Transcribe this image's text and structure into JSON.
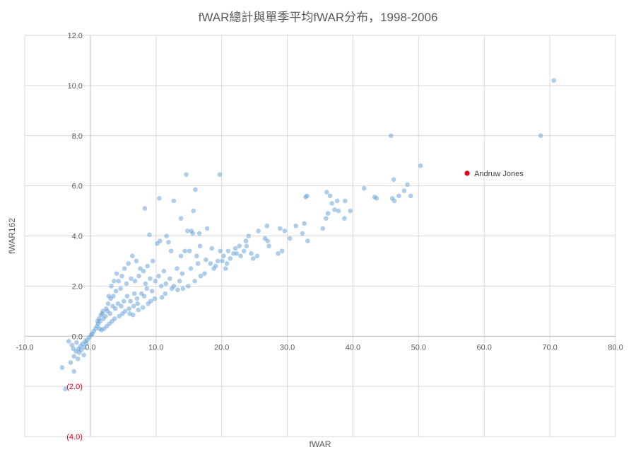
{
  "chart_data": {
    "type": "scatter",
    "title": "fWAR總計與單季平均fWAR分布，1998-2006",
    "xlabel": "fWAR",
    "ylabel": "fWAR162",
    "xlim": [
      -10,
      80
    ],
    "ylim": [
      -4,
      12
    ],
    "x_ticks": [
      "-10.0",
      "0.0",
      "10.0",
      "20.0",
      "30.0",
      "40.0",
      "50.0",
      "60.0",
      "70.0",
      "80.0"
    ],
    "y_ticks": [
      "(4.0)",
      "(2.0)",
      "0.0",
      "2.0",
      "4.0",
      "6.0",
      "8.0",
      "10.0",
      "12.0"
    ],
    "grid": true,
    "series": [
      {
        "color": "#5B9BD5",
        "points": [
          [
            70.6,
            10.2
          ],
          [
            68.6,
            8.0
          ],
          [
            45.8,
            8.0
          ],
          [
            50.3,
            6.8
          ],
          [
            48.3,
            6.05
          ],
          [
            46.2,
            6.25
          ],
          [
            48.8,
            5.6
          ],
          [
            47.8,
            5.8
          ],
          [
            47.0,
            5.6
          ],
          [
            46.0,
            5.5
          ],
          [
            46.3,
            5.4
          ],
          [
            41.7,
            5.9
          ],
          [
            43.3,
            5.55
          ],
          [
            43.6,
            5.5
          ],
          [
            39.6,
            5.0
          ],
          [
            38.8,
            5.4
          ],
          [
            38.7,
            4.7
          ],
          [
            37.6,
            5.4
          ],
          [
            37.8,
            5.0
          ],
          [
            36.5,
            5.6
          ],
          [
            36.0,
            5.75
          ],
          [
            37.2,
            5.05
          ],
          [
            36.8,
            5.3
          ],
          [
            36.2,
            4.9
          ],
          [
            35.9,
            4.7
          ],
          [
            35.4,
            4.3
          ],
          [
            32.8,
            5.55
          ],
          [
            33.0,
            5.6
          ],
          [
            32.6,
            4.5
          ],
          [
            33.1,
            3.8
          ],
          [
            32.3,
            4.1
          ],
          [
            31.3,
            4.4
          ],
          [
            30.4,
            3.9
          ],
          [
            29.6,
            4.2
          ],
          [
            28.9,
            4.3
          ],
          [
            29.2,
            3.4
          ],
          [
            28.6,
            3.3
          ],
          [
            26.9,
            4.4
          ],
          [
            27.2,
            3.6
          ],
          [
            27.0,
            3.8
          ],
          [
            26.6,
            3.9
          ],
          [
            25.6,
            4.2
          ],
          [
            24.1,
            4.0
          ],
          [
            23.7,
            3.8
          ],
          [
            24.5,
            3.3
          ],
          [
            25.4,
            3.2
          ],
          [
            24.8,
            3.1
          ],
          [
            23.4,
            3.4
          ],
          [
            22.7,
            3.6
          ],
          [
            22.1,
            3.5
          ],
          [
            21.8,
            3.3
          ],
          [
            21.3,
            3.1
          ],
          [
            20.8,
            2.9
          ],
          [
            20.6,
            2.7
          ],
          [
            23.8,
            3.6
          ],
          [
            22.9,
            3.2
          ],
          [
            19.7,
            6.45
          ],
          [
            14.6,
            6.45
          ],
          [
            16.0,
            5.85
          ],
          [
            15.7,
            5.0
          ],
          [
            12.7,
            5.4
          ],
          [
            10.5,
            5.5
          ],
          [
            8.3,
            5.1
          ],
          [
            13.8,
            4.7
          ],
          [
            15.4,
            4.2
          ],
          [
            15.6,
            4.1
          ],
          [
            16.6,
            4.1
          ],
          [
            17.8,
            4.3
          ],
          [
            14.8,
            4.2
          ],
          [
            11.6,
            4.0
          ],
          [
            9.0,
            4.05
          ],
          [
            10.2,
            3.7
          ],
          [
            10.6,
            3.8
          ],
          [
            11.9,
            3.75
          ],
          [
            12.3,
            3.4
          ],
          [
            13.8,
            3.2
          ],
          [
            14.4,
            3.4
          ],
          [
            15.1,
            3.4
          ],
          [
            16.2,
            3.2
          ],
          [
            16.7,
            3.6
          ],
          [
            18.5,
            3.5
          ],
          [
            19.8,
            3.4
          ],
          [
            20.3,
            3.2
          ],
          [
            19.4,
            3.0
          ],
          [
            18.8,
            2.7
          ],
          [
            17.4,
            2.5
          ],
          [
            16.8,
            2.4
          ],
          [
            15.9,
            2.2
          ],
          [
            14.9,
            2.0
          ],
          [
            14.1,
            1.9
          ],
          [
            13.3,
            1.85
          ],
          [
            12.4,
            1.9
          ],
          [
            11.4,
            1.7
          ],
          [
            10.9,
            1.55
          ],
          [
            9.8,
            1.5
          ],
          [
            9.2,
            1.4
          ],
          [
            8.8,
            1.3
          ],
          [
            8.0,
            1.15
          ],
          [
            7.3,
            1.05
          ],
          [
            6.5,
            0.85
          ],
          [
            6.0,
            0.9
          ],
          [
            10.4,
            2.4
          ],
          [
            11.2,
            2.6
          ],
          [
            12.1,
            2.3
          ],
          [
            13.2,
            2.7
          ],
          [
            14.0,
            2.5
          ],
          [
            15.3,
            2.7
          ],
          [
            16.4,
            2.9
          ],
          [
            17.6,
            3.05
          ],
          [
            18.3,
            2.9
          ],
          [
            19.1,
            2.8
          ],
          [
            20.1,
            3.0
          ],
          [
            21.0,
            3.4
          ],
          [
            22.3,
            3.3
          ],
          [
            9.5,
            3.0
          ],
          [
            8.7,
            2.8
          ],
          [
            8.1,
            2.6
          ],
          [
            7.6,
            2.7
          ],
          [
            7.0,
            3.0
          ],
          [
            6.4,
            3.2
          ],
          [
            5.8,
            2.9
          ],
          [
            5.2,
            2.7
          ],
          [
            4.8,
            2.4
          ],
          [
            4.3,
            2.2
          ],
          [
            4.0,
            2.5
          ],
          [
            3.6,
            2.2
          ],
          [
            3.2,
            2.0
          ],
          [
            2.8,
            1.6
          ],
          [
            3.9,
            1.8
          ],
          [
            4.6,
            1.9
          ],
          [
            5.5,
            2.1
          ],
          [
            6.2,
            2.3
          ],
          [
            6.8,
            2.2
          ],
          [
            7.4,
            2.4
          ],
          [
            8.4,
            2.1
          ],
          [
            9.1,
            2.3
          ],
          [
            9.9,
            2.2
          ],
          [
            10.8,
            2.0
          ],
          [
            11.5,
            2.1
          ],
          [
            12.7,
            2.0
          ],
          [
            13.6,
            2.2
          ],
          [
            9.4,
            1.8
          ],
          [
            8.6,
            1.9
          ],
          [
            7.8,
            1.7
          ],
          [
            7.1,
            1.5
          ],
          [
            6.7,
            1.7
          ],
          [
            6.1,
            1.4
          ],
          [
            5.6,
            1.6
          ],
          [
            5.1,
            1.4
          ],
          [
            4.7,
            1.2
          ],
          [
            4.2,
            1.3
          ],
          [
            3.8,
            1.1
          ],
          [
            3.4,
            1.2
          ],
          [
            3.0,
            0.9
          ],
          [
            2.6,
            1.0
          ],
          [
            2.3,
            0.8
          ],
          [
            2.0,
            0.7
          ],
          [
            1.8,
            0.9
          ],
          [
            1.5,
            0.6
          ],
          [
            1.2,
            0.5
          ],
          [
            1.0,
            0.4
          ],
          [
            0.8,
            0.3
          ],
          [
            0.5,
            0.2
          ],
          [
            0.3,
            0.1
          ],
          [
            0.1,
            0.05
          ],
          [
            -0.2,
            -0.05
          ],
          [
            -0.5,
            -0.15
          ],
          [
            -0.8,
            -0.2
          ],
          [
            -1.2,
            -0.3
          ],
          [
            -1.5,
            -0.4
          ],
          [
            5.9,
            1.1
          ],
          [
            5.3,
            1.0
          ],
          [
            4.9,
            0.9
          ],
          [
            4.4,
            0.8
          ],
          [
            3.7,
            0.7
          ],
          [
            3.3,
            0.6
          ],
          [
            2.9,
            0.5
          ],
          [
            2.5,
            0.4
          ],
          [
            2.1,
            0.3
          ],
          [
            1.7,
            0.25
          ],
          [
            1.4,
            0.3
          ],
          [
            6.6,
            1.2
          ],
          [
            7.2,
            1.3
          ],
          [
            8.2,
            1.6
          ],
          [
            2.4,
            1.1
          ],
          [
            2.7,
            1.3
          ],
          [
            3.1,
            1.5
          ],
          [
            3.5,
            1.6
          ],
          [
            1.9,
            1.0
          ],
          [
            1.6,
            0.85
          ],
          [
            1.3,
            0.7
          ],
          [
            1.1,
            0.6
          ],
          [
            -1.8,
            -0.5
          ],
          [
            -2.2,
            -0.6
          ],
          [
            -2.5,
            -0.8
          ],
          [
            -1.9,
            -0.9
          ],
          [
            -1.0,
            -0.75
          ],
          [
            -1.4,
            -0.55
          ],
          [
            -2.8,
            -0.35
          ],
          [
            -2.6,
            -0.5
          ],
          [
            -3.3,
            -0.2
          ],
          [
            -2.1,
            -0.25
          ],
          [
            -3.0,
            -1.05
          ],
          [
            -4.3,
            -1.25
          ],
          [
            -3.8,
            -2.1
          ],
          [
            -2.5,
            -1.4
          ],
          [
            -1.7,
            -0.65
          ],
          [
            -0.9,
            -0.45
          ],
          [
            -0.6,
            -0.3
          ]
        ]
      },
      {
        "name": "Andruw Jones",
        "color": "#E3001B",
        "points": [
          [
            57.4,
            6.5
          ]
        ]
      }
    ],
    "annotations": [
      {
        "label": "Andruw Jones",
        "x": 57.4,
        "y": 6.5
      }
    ]
  }
}
